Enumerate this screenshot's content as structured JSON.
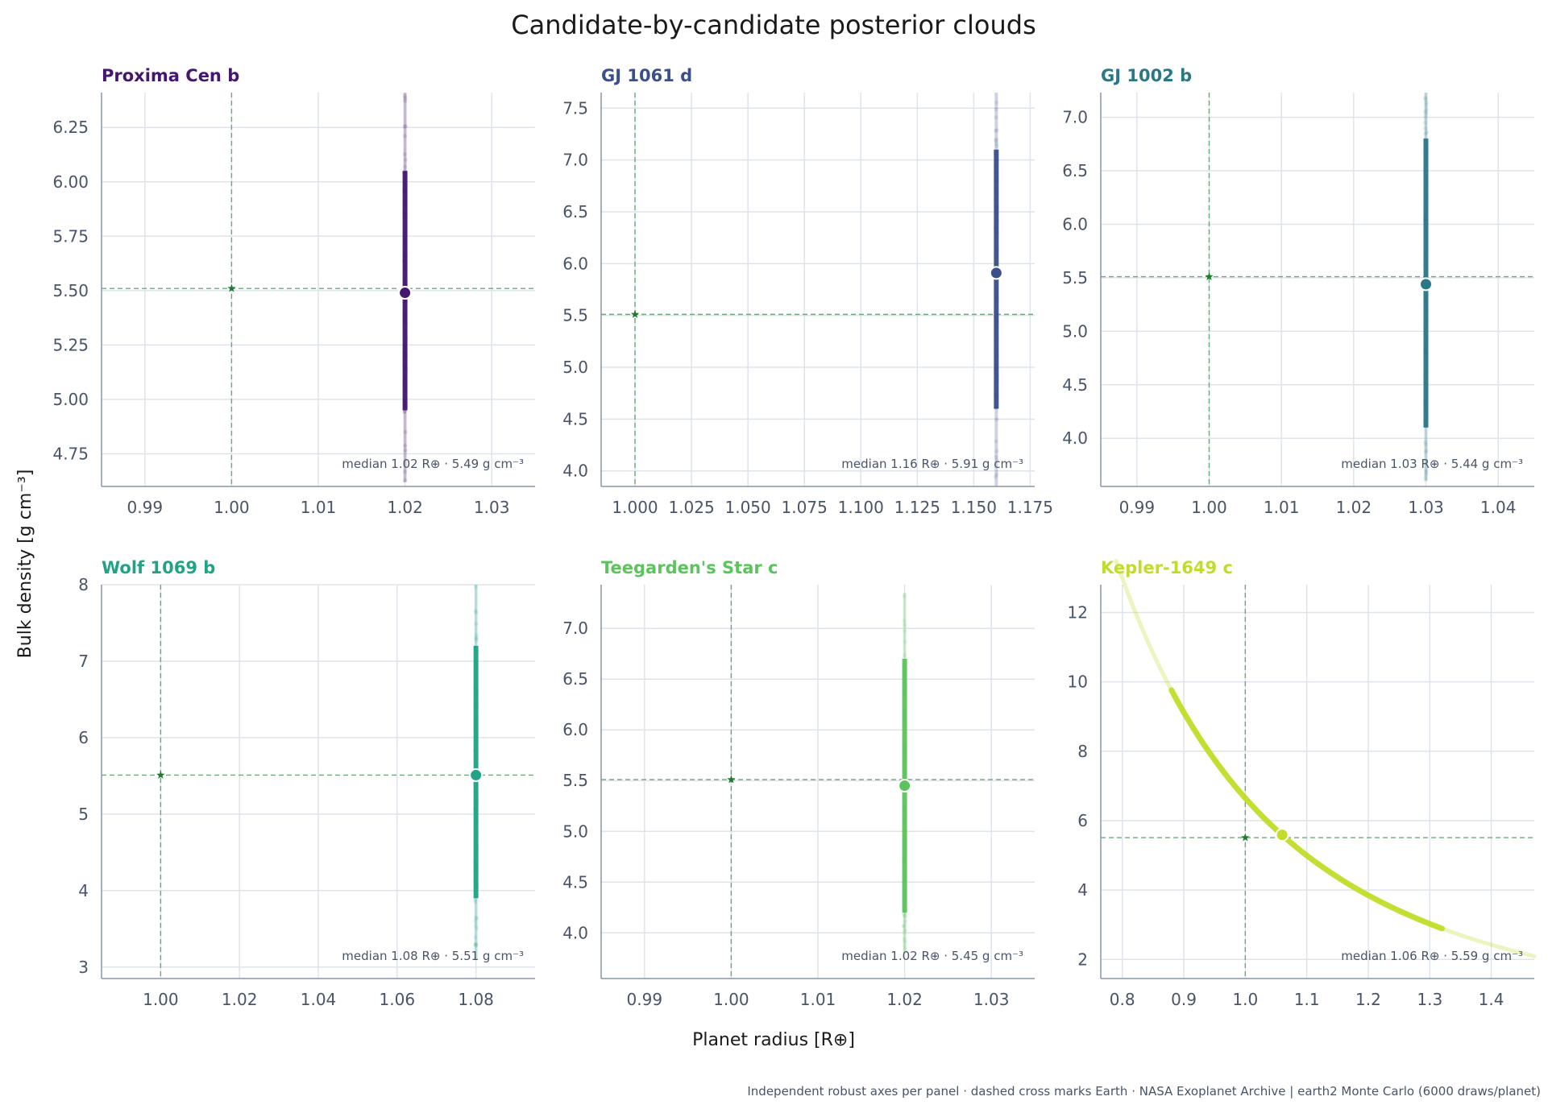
{
  "figure": {
    "title": "Candidate-by-candidate posterior clouds",
    "xlabel": "Planet radius  [R⊕]",
    "ylabel": "Bulk density  [g cm⁻³]",
    "footer": "Independent robust axes per panel · dashed cross marks Earth · NASA Exoplanet Archive | earth2 Monte Carlo (6000 draws/planet)",
    "earth_marker_color": "#1e7a2e",
    "grid_color": "#dfe3ea",
    "spine_color": "#8a93a6",
    "reference_line_color": "#6fa87e"
  },
  "chart_data": [
    {
      "type": "scatter",
      "title": "Proxima Cen b",
      "color": "#45166f",
      "earth": [
        1.0,
        5.51
      ],
      "median": [
        1.02,
        5.49
      ],
      "median_label": "median  1.02 R⊕ · 5.49 g cm⁻³",
      "xlim": [
        0.985,
        1.035
      ],
      "ylim": [
        4.6,
        6.41
      ],
      "xticks": [
        0.99,
        1.0,
        1.01,
        1.02,
        1.03
      ],
      "xtick_labels": [
        "0.99",
        "1.00",
        "1.01",
        "1.02",
        "1.03"
      ],
      "yticks": [
        4.75,
        5.0,
        5.25,
        5.5,
        5.75,
        6.0,
        6.25
      ],
      "ytick_labels": [
        "4.75",
        "5.00",
        "5.25",
        "5.50",
        "5.75",
        "6.00",
        "6.25"
      ],
      "cloud": {
        "shape": "vertical",
        "x": 1.02,
        "y_range": [
          4.62,
          6.41
        ],
        "core_range": [
          4.95,
          6.05
        ]
      }
    },
    {
      "type": "scatter",
      "title": "GJ 1061 d",
      "color": "#3b4f8a",
      "earth": [
        1.0,
        5.51
      ],
      "median": [
        1.16,
        5.91
      ],
      "median_label": "median  1.16 R⊕ · 5.91 g cm⁻³",
      "xlim": [
        0.985,
        1.177
      ],
      "ylim": [
        3.85,
        7.65
      ],
      "xticks": [
        1.0,
        1.025,
        1.05,
        1.075,
        1.1,
        1.125,
        1.15,
        1.175
      ],
      "xtick_labels": [
        "1.000",
        "1.025",
        "1.050",
        "1.075",
        "1.100",
        "1.125",
        "1.150",
        "1.175"
      ],
      "yticks": [
        4.0,
        4.5,
        5.0,
        5.5,
        6.0,
        6.5,
        7.0,
        7.5
      ],
      "ytick_labels": [
        "4.0",
        "4.5",
        "5.0",
        "5.5",
        "6.0",
        "6.5",
        "7.0",
        "7.5"
      ],
      "cloud": {
        "shape": "vertical",
        "x": 1.16,
        "y_range": [
          3.85,
          7.65
        ],
        "core_range": [
          4.6,
          7.1
        ]
      }
    },
    {
      "type": "scatter",
      "title": "GJ 1002 b",
      "color": "#2a7886",
      "earth": [
        1.0,
        5.51
      ],
      "median": [
        1.03,
        5.44
      ],
      "median_label": "median  1.03 R⊕ · 5.44 g cm⁻³",
      "xlim": [
        0.985,
        1.045
      ],
      "ylim": [
        3.55,
        7.23
      ],
      "xticks": [
        0.99,
        1.0,
        1.01,
        1.02,
        1.03,
        1.04
      ],
      "xtick_labels": [
        "0.99",
        "1.00",
        "1.01",
        "1.02",
        "1.03",
        "1.04"
      ],
      "yticks": [
        4.0,
        4.5,
        5.0,
        5.5,
        6.0,
        6.5,
        7.0
      ],
      "ytick_labels": [
        "4.0",
        "4.5",
        "5.0",
        "5.5",
        "6.0",
        "6.5",
        "7.0"
      ],
      "cloud": {
        "shape": "vertical",
        "x": 1.03,
        "y_range": [
          3.6,
          7.23
        ],
        "core_range": [
          4.1,
          6.8
        ]
      }
    },
    {
      "type": "scatter",
      "title": "Wolf 1069 b",
      "color": "#22a386",
      "earth": [
        1.0,
        5.51
      ],
      "median": [
        1.08,
        5.51
      ],
      "median_label": "median  1.08 R⊕ · 5.51 g cm⁻³",
      "xlim": [
        0.985,
        1.095
      ],
      "ylim": [
        2.85,
        8.0
      ],
      "xticks": [
        1.0,
        1.02,
        1.04,
        1.06,
        1.08
      ],
      "xtick_labels": [
        "1.00",
        "1.02",
        "1.04",
        "1.06",
        "1.08"
      ],
      "yticks": [
        3,
        4,
        5,
        6,
        7,
        8
      ],
      "ytick_labels": [
        "3",
        "4",
        "5",
        "6",
        "7",
        "8"
      ],
      "cloud": {
        "shape": "vertical",
        "x": 1.08,
        "y_range": [
          3.1,
          8.0
        ],
        "core_range": [
          3.9,
          7.2
        ]
      }
    },
    {
      "type": "scatter",
      "title": "Teegarden's Star c",
      "color": "#5cc45c",
      "earth": [
        1.0,
        5.51
      ],
      "median": [
        1.02,
        5.45
      ],
      "median_label": "median  1.02 R⊕ · 5.45 g cm⁻³",
      "xlim": [
        0.985,
        1.035
      ],
      "ylim": [
        3.55,
        7.43
      ],
      "xticks": [
        0.99,
        1.0,
        1.01,
        1.02,
        1.03
      ],
      "xtick_labels": [
        "0.99",
        "1.00",
        "1.01",
        "1.02",
        "1.03"
      ],
      "yticks": [
        4.0,
        4.5,
        5.0,
        5.5,
        6.0,
        6.5,
        7.0
      ],
      "ytick_labels": [
        "4.0",
        "4.5",
        "5.0",
        "5.5",
        "6.0",
        "6.5",
        "7.0"
      ],
      "cloud": {
        "shape": "vertical",
        "x": 1.02,
        "y_range": [
          3.8,
          7.35
        ],
        "core_range": [
          4.2,
          6.7
        ]
      }
    },
    {
      "type": "scatter",
      "title": "Kepler-1649 c",
      "color": "#c3dc2a",
      "earth": [
        1.0,
        5.51
      ],
      "median": [
        1.06,
        5.59
      ],
      "median_label": "median  1.06 R⊕ · 5.59 g cm⁻³",
      "xlim": [
        0.765,
        1.47
      ],
      "ylim": [
        1.45,
        12.8
      ],
      "xticks": [
        0.8,
        0.9,
        1.0,
        1.1,
        1.2,
        1.3,
        1.4
      ],
      "xtick_labels": [
        "0.8",
        "0.9",
        "1.0",
        "1.1",
        "1.2",
        "1.3",
        "1.4"
      ],
      "yticks": [
        2,
        4,
        6,
        8,
        10,
        12
      ],
      "ytick_labels": [
        "2",
        "4",
        "6",
        "8",
        "10",
        "12"
      ],
      "cloud": {
        "shape": "curve",
        "k": 6.65,
        "x_range": [
          0.79,
          1.47
        ],
        "core_range": [
          0.88,
          1.32
        ]
      }
    }
  ]
}
